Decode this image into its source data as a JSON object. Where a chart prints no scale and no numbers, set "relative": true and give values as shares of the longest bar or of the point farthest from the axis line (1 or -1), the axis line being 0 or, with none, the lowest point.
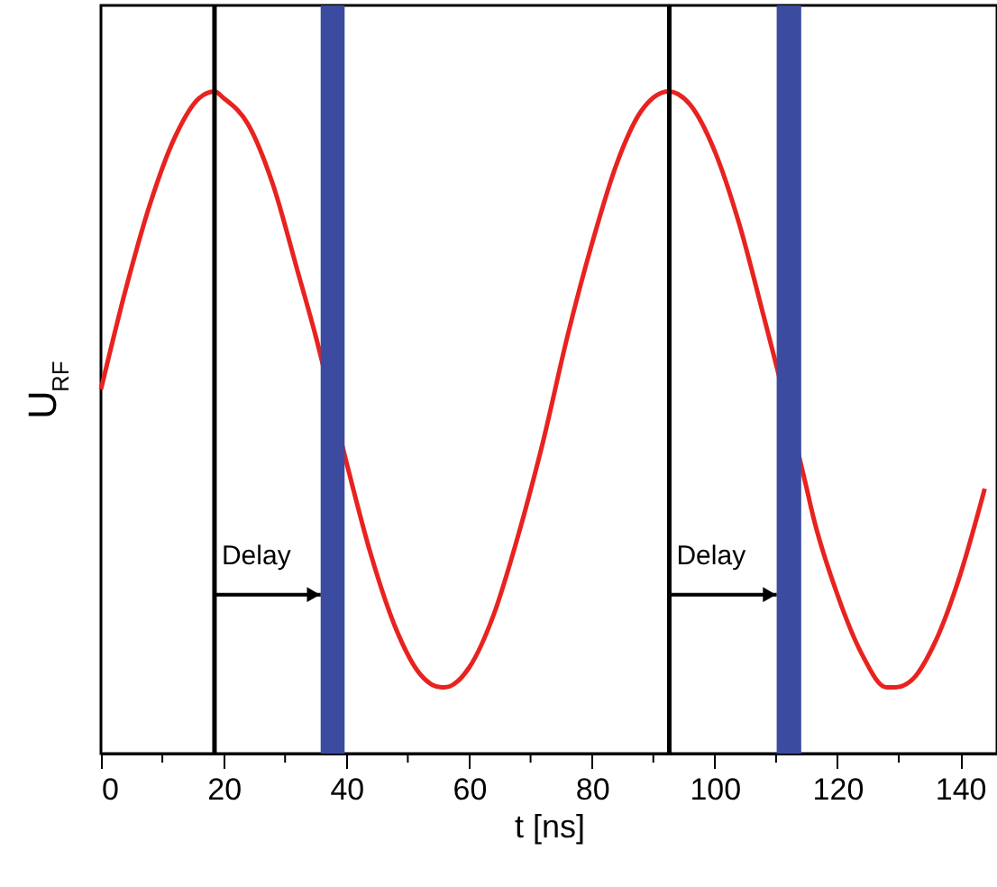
{
  "chart_data": {
    "type": "line",
    "relative": true,
    "xlabel": "t [ns]",
    "ylabel": "U$_{RF}$",
    "x": [
      0,
      4,
      8,
      12,
      16,
      18.5,
      20,
      24,
      28,
      32,
      35,
      40,
      44,
      48,
      52,
      55.5,
      56,
      60,
      64,
      68,
      72,
      76,
      80,
      84,
      88,
      92.5,
      96,
      100,
      104,
      108,
      115,
      116,
      120,
      124,
      128,
      129.5,
      132,
      136,
      140,
      144
    ],
    "series": [
      {
        "color": "#e8231f",
        "values": [
          0.55,
          0.7,
          0.83,
          0.93,
          0.99,
          1.0,
          0.99,
          0.95,
          0.86,
          0.73,
          0.63,
          0.44,
          0.3,
          0.19,
          0.12,
          0.1,
          0.1,
          0.13,
          0.21,
          0.33,
          0.47,
          0.63,
          0.77,
          0.89,
          0.97,
          1.0,
          0.98,
          0.91,
          0.8,
          0.66,
          0.4,
          0.36,
          0.24,
          0.15,
          0.1,
          0.1,
          0.11,
          0.17,
          0.27,
          0.4
        ]
      }
    ],
    "xlim": [
      0,
      146
    ],
    "xticks": [
      0,
      {
        "value": 10,
        "label": null
      },
      20,
      {
        "value": 30,
        "label": null
      },
      40,
      {
        "value": 50,
        "label": null
      },
      60,
      {
        "value": 70,
        "label": null
      },
      80,
      {
        "value": 90,
        "label": null
      },
      100,
      {
        "value": 110,
        "label": null
      },
      120,
      {
        "value": 130,
        "label": null
      },
      140
    ],
    "tick_labels": "x",
    "grid": false,
    "ref_lines": [
      {
        "axis": "x",
        "value": 18.5,
        "color": "#000000"
      },
      {
        "axis": "x",
        "value": 92.6,
        "color": "#000000"
      }
    ],
    "bands": [
      {
        "axis": "x",
        "from": 35.8,
        "to": 39.7,
        "color": "#3a4ba0"
      },
      {
        "axis": "x",
        "from": 110.1,
        "to": 114.1,
        "color": "#3a4ba0"
      }
    ],
    "annotations": [
      {
        "text": "Delay",
        "x": 18.5,
        "y": 0.24
      },
      {
        "text": "Delay",
        "x": 92.6,
        "y": 0.24
      }
    ]
  }
}
